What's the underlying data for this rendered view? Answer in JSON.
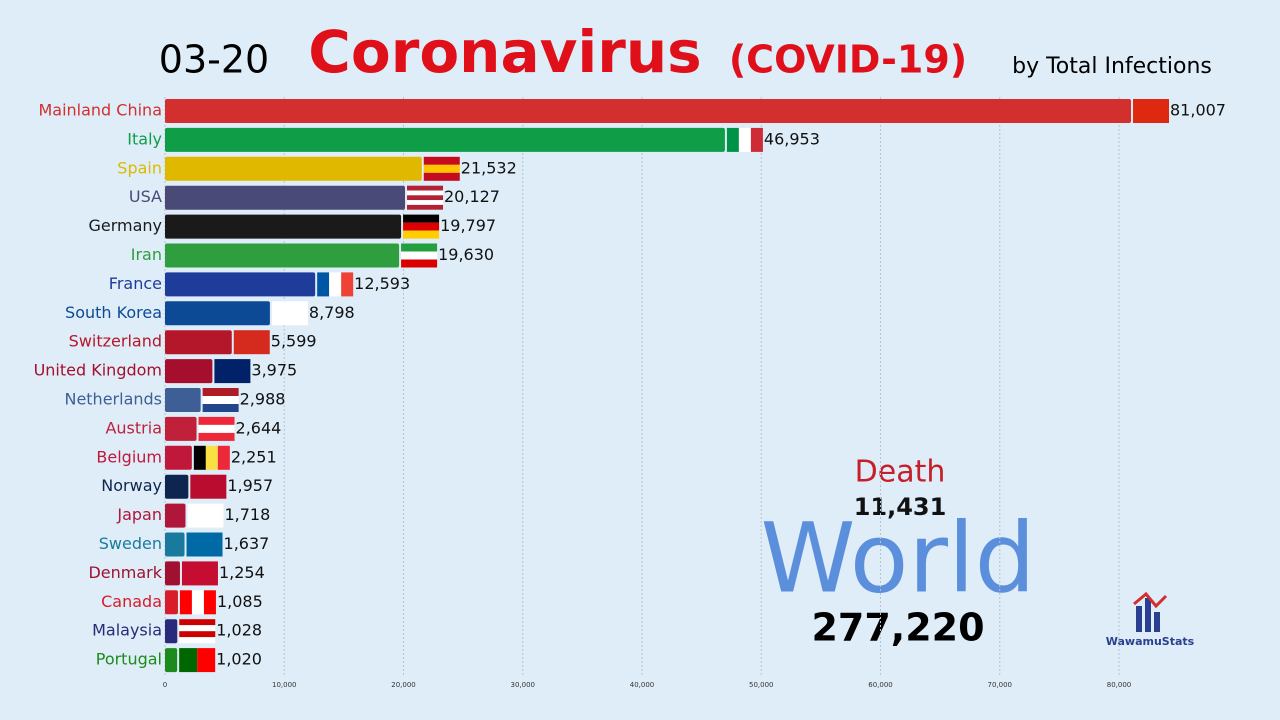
{
  "chart_data": {
    "type": "bar",
    "orientation": "horizontal",
    "date": "03-20",
    "title": "Coronavirus",
    "title_suffix": "(COVID-19)",
    "subtitle": "by Total Infections",
    "categories": [
      "Mainland China",
      "Italy",
      "Spain",
      "USA",
      "Germany",
      "Iran",
      "France",
      "South Korea",
      "Switzerland",
      "United Kingdom",
      "Netherlands",
      "Austria",
      "Belgium",
      "Norway",
      "Japan",
      "Sweden",
      "Denmark",
      "Canada",
      "Malaysia",
      "Portugal"
    ],
    "values": [
      81007,
      46953,
      21532,
      20127,
      19797,
      19630,
      12593,
      8798,
      5599,
      3975,
      2988,
      2644,
      2251,
      1957,
      1718,
      1637,
      1254,
      1085,
      1028,
      1020
    ],
    "value_labels": [
      "81,007",
      "46,953",
      "21,532",
      "20,127",
      "19,797",
      "19,630",
      "12,593",
      "8,798",
      "5,599",
      "3,975",
      "2,988",
      "2,644",
      "2,251",
      "1,957",
      "1,718",
      "1,637",
      "1,254",
      "1,085",
      "1,028",
      "1,020"
    ],
    "colors": [
      "#d32f2f",
      "#0f9d48",
      "#e0b800",
      "#4a4a78",
      "#1a1a1a",
      "#2e9e3f",
      "#1f3c9a",
      "#0d4a96",
      "#b5172a",
      "#a50f2d",
      "#3e5f95",
      "#c0203a",
      "#c0183a",
      "#0e2550",
      "#b0153a",
      "#1a7a9e",
      "#a01030",
      "#d81c2a",
      "#2a2a7a",
      "#1c8a1c"
    ],
    "xlim": [
      0,
      90000
    ],
    "xticks": [
      0,
      {
        "value": 10000,
        "label": "10,000"
      },
      {
        "value": 20000,
        "label": "20,000"
      },
      {
        "value": 30000,
        "label": "30,000"
      },
      {
        "value": 40000,
        "label": "40,000"
      },
      {
        "value": 50000,
        "label": "50,000"
      },
      {
        "value": 60000,
        "label": "60,000"
      },
      {
        "value": 70000,
        "label": "70,000"
      },
      {
        "value": 80000,
        "label": "80,000"
      }
    ],
    "grid": true,
    "annotations": {
      "death_label": "Death",
      "deaths": "11,431",
      "region": "World",
      "total": "277,220",
      "logo": "WawamuStats"
    }
  }
}
